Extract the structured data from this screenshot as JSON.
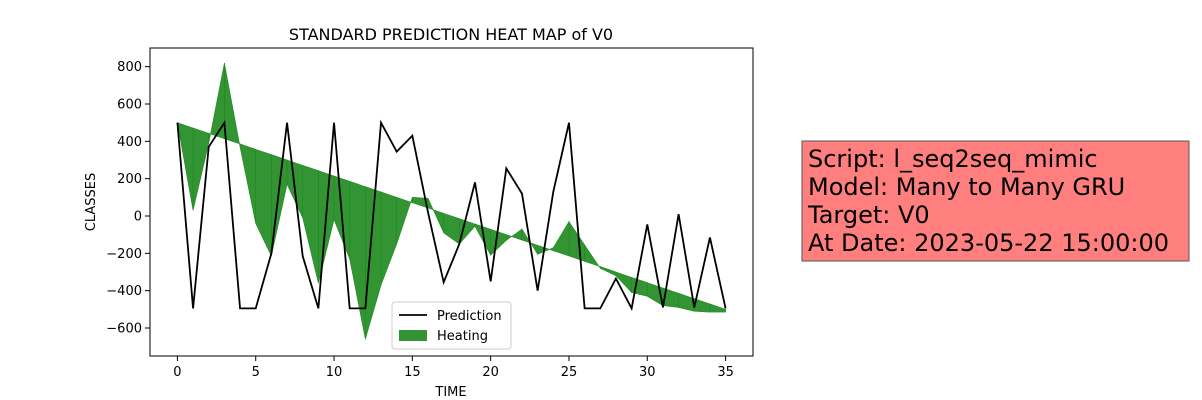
{
  "chart_data": {
    "type": "line",
    "title": "STANDARD PREDICTION HEAT MAP of V0",
    "xlabel": "TIME",
    "ylabel": "CLASSES",
    "xlim": [
      -1.75,
      36.75
    ],
    "ylim": [
      -750,
      900
    ],
    "xticks": [
      0,
      5,
      10,
      15,
      20,
      25,
      30,
      35
    ],
    "yticks": [
      -600,
      -400,
      -200,
      0,
      200,
      400,
      600,
      800
    ],
    "grid": false,
    "legend_position": "lower center",
    "x": [
      0,
      1,
      2,
      3,
      4,
      5,
      6,
      7,
      8,
      9,
      10,
      11,
      12,
      13,
      14,
      15,
      16,
      17,
      18,
      19,
      20,
      21,
      22,
      23,
      24,
      25,
      26,
      27,
      28,
      29,
      30,
      31,
      32,
      33,
      34,
      35
    ],
    "series": [
      {
        "name": "Prediction",
        "kind": "line",
        "color": "#000000",
        "values": [
          500,
          -495,
          370,
          500,
          -495,
          -495,
          -200,
          500,
          -215,
          -495,
          500,
          -495,
          -495,
          500,
          345,
          430,
          20,
          -355,
          -150,
          180,
          -350,
          255,
          120,
          -400,
          130,
          500,
          -495,
          -495,
          -335,
          -495,
          -45,
          -490,
          10,
          -490,
          -115,
          -495
        ]
      },
      {
        "name": "Heating",
        "kind": "fill_between",
        "color": "#228B22",
        "base": [
          500,
          471,
          443,
          414,
          386,
          357,
          329,
          300,
          271,
          243,
          214,
          186,
          157,
          129,
          100,
          71,
          43,
          14,
          -14,
          -43,
          -71,
          -100,
          -129,
          -157,
          -186,
          -214,
          -243,
          -271,
          -300,
          -329,
          -357,
          -386,
          -414,
          -443,
          -471,
          -500
        ],
        "values": [
          500,
          30,
          390,
          820,
          370,
          -40,
          -215,
          170,
          -10,
          -360,
          -20,
          -230,
          -660,
          -370,
          -150,
          100,
          95,
          -90,
          -150,
          -55,
          -210,
          -130,
          -70,
          -205,
          -170,
          -30,
          -155,
          -280,
          -320,
          -410,
          -430,
          -480,
          -490,
          -510,
          -515,
          -515
        ]
      }
    ],
    "info_box": {
      "lines": [
        "Script: l_seq2seq_mimic",
        "Model: Many to Many GRU",
        "Target: V0",
        "At Date: 2023-05-22 15:00:00"
      ],
      "background": "#FF7F7F"
    }
  }
}
